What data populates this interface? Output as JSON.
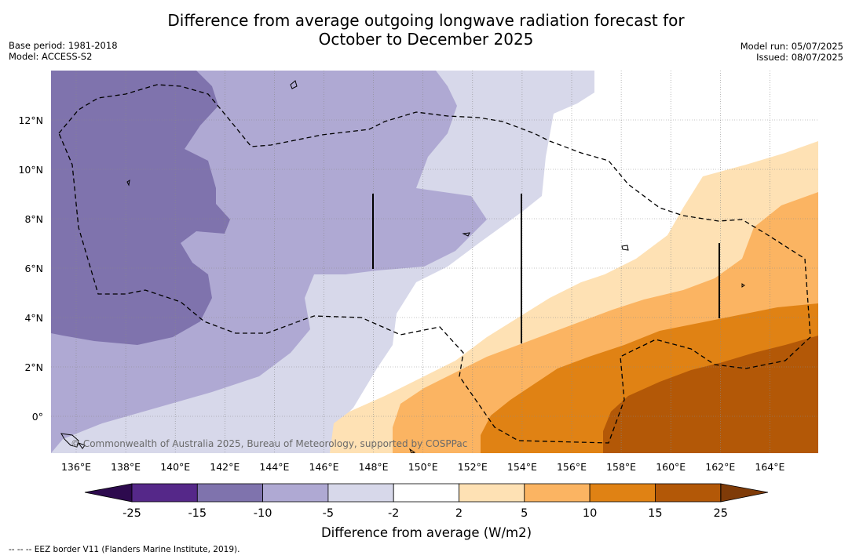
{
  "header": {
    "title_line1": "Difference from average outgoing longwave radiation forecast for",
    "title_line2": "October to December 2025",
    "base_period": "Base period: 1981-2018",
    "model": "Model: ACCESS-S2",
    "model_run": "Model run: 05/07/2025",
    "issued": "Issued: 08/07/2025"
  },
  "map": {
    "x_ticks": [
      "136°E",
      "138°E",
      "140°E",
      "142°E",
      "144°E",
      "146°E",
      "148°E",
      "150°E",
      "152°E",
      "154°E",
      "156°E",
      "158°E",
      "160°E",
      "162°E",
      "164°E"
    ],
    "y_ticks": [
      "12°N",
      "10°N",
      "8°N",
      "6°N",
      "4°N",
      "2°N",
      "0°"
    ],
    "copyright": "© Commonwealth of Australia 2025, Bureau of Meteorology, supported by COSPPac"
  },
  "colorbar": {
    "label": "Difference from average (W/m2)",
    "ticks": [
      "-25",
      "-15",
      "-10",
      "-5",
      "-2",
      "2",
      "5",
      "10",
      "15",
      "25"
    ],
    "colors": {
      "below": "#2d0a4e",
      "c1": "#552889",
      "c2": "#7f73ad",
      "c3": "#afa9d3",
      "c4": "#d7d8ea",
      "c5": "#ffffff",
      "c6": "#fee1b4",
      "c7": "#fbb462",
      "c8": "#e08214",
      "c9": "#b35807",
      "above": "#7f3b08"
    }
  },
  "footer": {
    "legend_line": "--  --  -- EEZ border V11 (Flanders Marine Institute, 2019)."
  }
}
